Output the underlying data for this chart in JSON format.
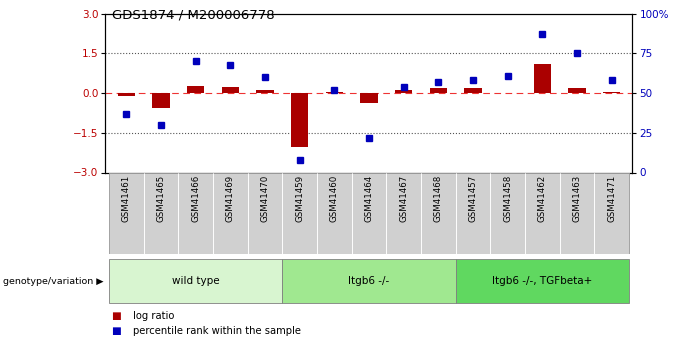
{
  "title": "GDS1874 / M200006778",
  "samples": [
    "GSM41461",
    "GSM41465",
    "GSM41466",
    "GSM41469",
    "GSM41470",
    "GSM41459",
    "GSM41460",
    "GSM41464",
    "GSM41467",
    "GSM41468",
    "GSM41457",
    "GSM41458",
    "GSM41462",
    "GSM41463",
    "GSM41471"
  ],
  "log_ratio": [
    -0.1,
    -0.55,
    0.28,
    0.22,
    0.13,
    -2.05,
    0.05,
    -0.38,
    0.12,
    0.18,
    0.18,
    0.0,
    1.1,
    0.18,
    0.05
  ],
  "percentile": [
    37,
    30,
    70,
    68,
    60,
    8,
    52,
    22,
    54,
    57,
    58,
    61,
    87,
    75,
    58
  ],
  "groups": [
    {
      "label": "wild type",
      "start": 0,
      "end": 5,
      "color": "#d8f5d0"
    },
    {
      "label": "Itgb6 -/-",
      "start": 5,
      "end": 10,
      "color": "#a0e890"
    },
    {
      "label": "Itgb6 -/-, TGFbeta+",
      "start": 10,
      "end": 15,
      "color": "#60d860"
    }
  ],
  "ylim_left": [
    -3,
    3
  ],
  "ylim_right": [
    0,
    100
  ],
  "yticks_left": [
    -3,
    -1.5,
    0,
    1.5,
    3
  ],
  "yticks_right": [
    0,
    25,
    50,
    75,
    100
  ],
  "bar_color_red": "#aa0000",
  "bar_color_blue": "#0000bb",
  "hline_color": "#ee3333",
  "dotted_line_color": "#555555",
  "bg_color": "#ffffff",
  "legend_red": "log ratio",
  "legend_blue": "percentile rank within the sample",
  "genotype_label": "genotype/variation",
  "xtick_bg": "#d0d0d0"
}
